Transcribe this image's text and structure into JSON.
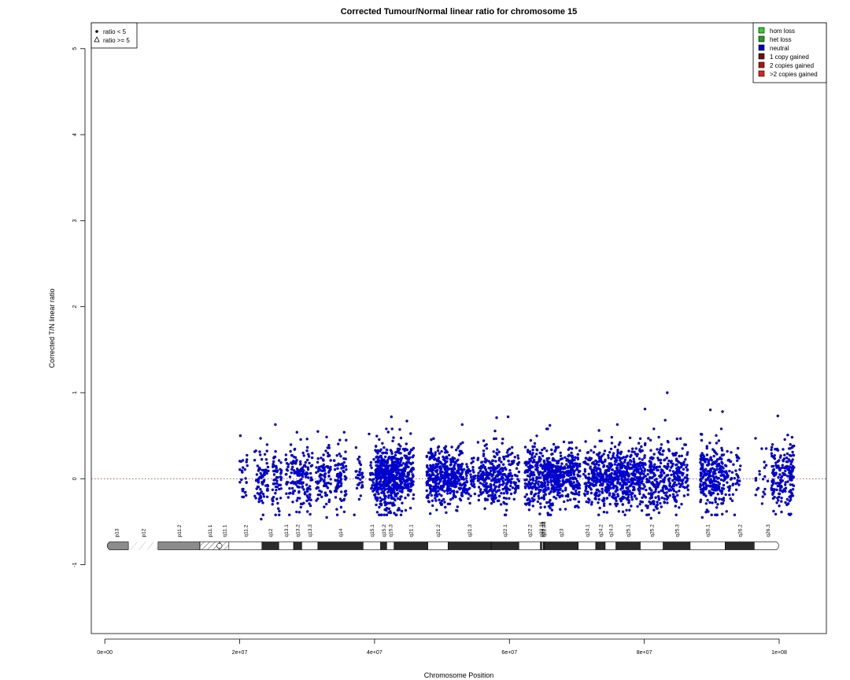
{
  "chart_data": {
    "type": "scatter",
    "title": "Corrected Tumour/Normal linear ratio for chromosome  15",
    "xlabel": "Chromosome Position",
    "ylabel": "Corrected T/N linear ratio",
    "xlim": [
      -2000000,
      107000000
    ],
    "ylim": [
      -1.8,
      5.3
    ],
    "x_ticks": [
      {
        "value": 0,
        "label": "0e+00"
      },
      {
        "value": 20000000,
        "label": "2e+07"
      },
      {
        "value": 40000000,
        "label": "4e+07"
      },
      {
        "value": 60000000,
        "label": "6e+07"
      },
      {
        "value": 80000000,
        "label": "8e+07"
      },
      {
        "value": 100000000,
        "label": "1e+08"
      }
    ],
    "y_ticks": [
      {
        "value": -1,
        "label": "-1"
      },
      {
        "value": 0,
        "label": "0"
      },
      {
        "value": 1,
        "label": "1"
      },
      {
        "value": 2,
        "label": "2"
      },
      {
        "value": 3,
        "label": "3"
      },
      {
        "value": 4,
        "label": "4"
      },
      {
        "value": 5,
        "label": "5"
      }
    ],
    "reference_line": {
      "y": 0,
      "style": "dotted",
      "color": "#8b2222"
    },
    "point_color": "#0000cd",
    "series": [
      {
        "name": "neutral",
        "color": "#0000cd",
        "points": [
          {
            "x": 20100000,
            "y": 0.5
          },
          {
            "x": 25300000,
            "y": 0.63
          },
          {
            "x": 28500000,
            "y": 0.54
          },
          {
            "x": 31600000,
            "y": 0.55
          },
          {
            "x": 35500000,
            "y": 0.54
          },
          {
            "x": 39200000,
            "y": 0.52
          },
          {
            "x": 42500000,
            "y": 0.72
          },
          {
            "x": 44800000,
            "y": 0.67
          },
          {
            "x": 53000000,
            "y": 0.63
          },
          {
            "x": 58100000,
            "y": 0.71
          },
          {
            "x": 59800000,
            "y": 0.72
          },
          {
            "x": 66000000,
            "y": 0.62
          },
          {
            "x": 76000000,
            "y": 0.63
          },
          {
            "x": 80100000,
            "y": 0.81
          },
          {
            "x": 83100000,
            "y": 0.68
          },
          {
            "x": 83400000,
            "y": 1.0
          },
          {
            "x": 89800000,
            "y": 0.8
          },
          {
            "x": 91600000,
            "y": 0.78
          },
          {
            "x": 99800000,
            "y": 0.73
          },
          {
            "x": 23200000,
            "y": -0.47
          },
          {
            "x": 32900000,
            "y": -0.45
          },
          {
            "x": 37000000,
            "y": -0.42
          },
          {
            "x": 65700000,
            "y": -0.4
          },
          {
            "x": 81000000,
            "y": -0.46
          },
          {
            "x": 88600000,
            "y": -0.45
          },
          {
            "x": 101600000,
            "y": -0.42
          },
          {
            "x": 96500000,
            "y": 0.47
          },
          {
            "x": 97900000,
            "y": -0.12
          },
          {
            "x": 92200000,
            "y": -0.38
          }
        ]
      }
    ],
    "clusters": [
      {
        "x0": 20000000,
        "x1": 21200000,
        "sd": 0.16,
        "n": 25
      },
      {
        "x0": 22200000,
        "x1": 24300000,
        "sd": 0.18,
        "n": 75
      },
      {
        "x0": 24800000,
        "x1": 26200000,
        "sd": 0.17,
        "n": 60
      },
      {
        "x0": 26800000,
        "x1": 27800000,
        "sd": 0.19,
        "n": 30
      },
      {
        "x0": 27800000,
        "x1": 29500000,
        "sd": 0.2,
        "n": 80
      },
      {
        "x0": 29500000,
        "x1": 30800000,
        "sd": 0.19,
        "n": 55
      },
      {
        "x0": 31300000,
        "x1": 33600000,
        "sd": 0.2,
        "n": 90
      },
      {
        "x0": 34000000,
        "x1": 35800000,
        "sd": 0.18,
        "n": 80
      },
      {
        "x0": 37200000,
        "x1": 38300000,
        "sd": 0.15,
        "n": 30
      },
      {
        "x0": 39300000,
        "x1": 40000000,
        "sd": 0.15,
        "n": 20
      },
      {
        "x0": 40100000,
        "x1": 44200000,
        "sd": 0.19,
        "n": 520
      },
      {
        "x0": 44200000,
        "x1": 45800000,
        "sd": 0.17,
        "n": 110
      },
      {
        "x0": 47700000,
        "x1": 50600000,
        "sd": 0.16,
        "n": 240
      },
      {
        "x0": 50600000,
        "x1": 53200000,
        "sd": 0.16,
        "n": 190
      },
      {
        "x0": 53200000,
        "x1": 55000000,
        "sd": 0.13,
        "n": 60
      },
      {
        "x0": 55300000,
        "x1": 57800000,
        "sd": 0.17,
        "n": 160
      },
      {
        "x0": 57800000,
        "x1": 60200000,
        "sd": 0.18,
        "n": 140
      },
      {
        "x0": 60200000,
        "x1": 61500000,
        "sd": 0.15,
        "n": 40
      },
      {
        "x0": 62300000,
        "x1": 65200000,
        "sd": 0.17,
        "n": 200
      },
      {
        "x0": 65200000,
        "x1": 67800000,
        "sd": 0.18,
        "n": 220
      },
      {
        "x0": 67800000,
        "x1": 70500000,
        "sd": 0.17,
        "n": 170
      },
      {
        "x0": 71000000,
        "x1": 72500000,
        "sd": 0.16,
        "n": 70
      },
      {
        "x0": 72500000,
        "x1": 74800000,
        "sd": 0.17,
        "n": 170
      },
      {
        "x0": 74800000,
        "x1": 77800000,
        "sd": 0.17,
        "n": 230
      },
      {
        "x0": 77800000,
        "x1": 80000000,
        "sd": 0.17,
        "n": 150
      },
      {
        "x0": 80000000,
        "x1": 82200000,
        "sd": 0.2,
        "n": 130
      },
      {
        "x0": 82200000,
        "x1": 84800000,
        "sd": 0.16,
        "n": 130
      },
      {
        "x0": 84800000,
        "x1": 86500000,
        "sd": 0.16,
        "n": 70
      },
      {
        "x0": 88300000,
        "x1": 91800000,
        "sd": 0.2,
        "n": 260
      },
      {
        "x0": 91800000,
        "x1": 94300000,
        "sd": 0.17,
        "n": 60
      },
      {
        "x0": 96500000,
        "x1": 98500000,
        "sd": 0.17,
        "n": 20
      },
      {
        "x0": 98800000,
        "x1": 102200000,
        "sd": 0.19,
        "n": 190
      }
    ],
    "symbol_legend": {
      "placement": "top-left",
      "entries": [
        {
          "symbol": "dot",
          "label": "ratio < 5"
        },
        {
          "symbol": "triangle",
          "label": "ratio >= 5"
        }
      ]
    },
    "cn_legend": {
      "placement": "top-right",
      "entries": [
        {
          "label": "hom loss",
          "color": "#2bd12b"
        },
        {
          "label": "het loss",
          "color": "#1ea01e"
        },
        {
          "label": "neutral",
          "color": "#0000cd"
        },
        {
          "label": "1 copy gained",
          "color": "#6b1111"
        },
        {
          "label": "2 copies gained",
          "color": "#a81616"
        },
        {
          "label": ">2 copies gained",
          "color": "#e11f1f"
        }
      ]
    },
    "ideogram": {
      "y": -0.78,
      "bands": [
        {
          "name": "p13",
          "start": 0,
          "end": 3500000,
          "type": "stalk-gray"
        },
        {
          "name": "p12",
          "start": 3500000,
          "end": 7900000,
          "type": "hatched"
        },
        {
          "name": "p11.2",
          "start": 7900000,
          "end": 14100000,
          "type": "gray"
        },
        {
          "name": "p11.1",
          "start": 14100000,
          "end": 17000000,
          "type": "hatched"
        },
        {
          "name": "q11.1",
          "start": 17000000,
          "end": 18400000,
          "type": "hatched"
        },
        {
          "name": "q11.2",
          "start": 18400000,
          "end": 23300000,
          "type": "white"
        },
        {
          "name": "q12",
          "start": 23300000,
          "end": 25800000,
          "type": "black"
        },
        {
          "name": "q13.1",
          "start": 25800000,
          "end": 28000000,
          "type": "white"
        },
        {
          "name": "q13.2",
          "start": 28000000,
          "end": 29200000,
          "type": "black"
        },
        {
          "name": "q13.3",
          "start": 29200000,
          "end": 31600000,
          "type": "white"
        },
        {
          "name": "q14",
          "start": 31600000,
          "end": 38300000,
          "type": "black"
        },
        {
          "name": "q15.1",
          "start": 38300000,
          "end": 40900000,
          "type": "white"
        },
        {
          "name": "q15.2",
          "start": 40900000,
          "end": 41800000,
          "type": "black"
        },
        {
          "name": "q15.3",
          "start": 41800000,
          "end": 42900000,
          "type": "white"
        },
        {
          "name": "q21.1",
          "start": 42900000,
          "end": 47900000,
          "type": "black"
        },
        {
          "name": "q21.2",
          "start": 47900000,
          "end": 50900000,
          "type": "white"
        },
        {
          "name": "q21.3",
          "start": 50900000,
          "end": 57300000,
          "type": "black"
        },
        {
          "name": "q22.1",
          "start": 57300000,
          "end": 61400000,
          "type": "black"
        },
        {
          "name": "q22.2",
          "start": 61400000,
          "end": 64600000,
          "type": "white"
        },
        {
          "name": "q22.31",
          "start": 64600000,
          "end": 64800000,
          "type": "black"
        },
        {
          "name": "q22.32",
          "start": 64800000,
          "end": 65000000,
          "type": "white"
        },
        {
          "name": "q22.33",
          "start": 65000000,
          "end": 65200000,
          "type": "black"
        },
        {
          "name": "q23",
          "start": 65200000,
          "end": 70200000,
          "type": "black"
        },
        {
          "name": "q24.1",
          "start": 70200000,
          "end": 72800000,
          "type": "white"
        },
        {
          "name": "q24.2",
          "start": 72800000,
          "end": 74200000,
          "type": "black"
        },
        {
          "name": "q24.3",
          "start": 74200000,
          "end": 75800000,
          "type": "white"
        },
        {
          "name": "q25.1",
          "start": 75800000,
          "end": 79400000,
          "type": "black"
        },
        {
          "name": "q25.2",
          "start": 79400000,
          "end": 82800000,
          "type": "white"
        },
        {
          "name": "q25.3",
          "start": 82800000,
          "end": 86800000,
          "type": "black"
        },
        {
          "name": "q26.1",
          "start": 86800000,
          "end": 92000000,
          "type": "white"
        },
        {
          "name": "q26.2",
          "start": 92000000,
          "end": 96300000,
          "type": "black"
        },
        {
          "name": "q26.3",
          "start": 96300000,
          "end": 100300000,
          "type": "white"
        }
      ]
    }
  }
}
